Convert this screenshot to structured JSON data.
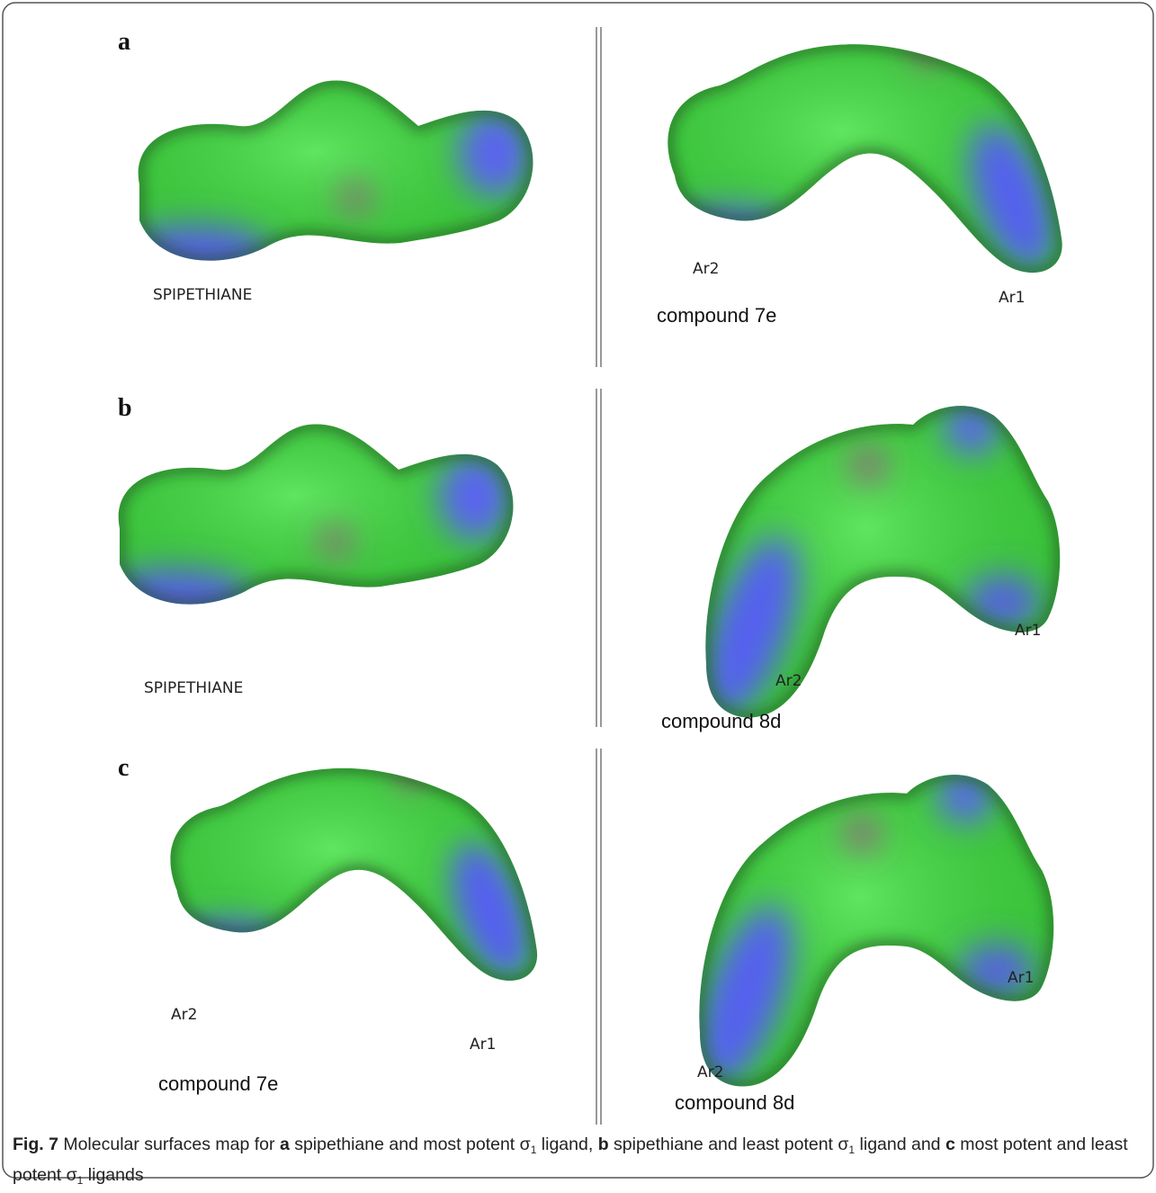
{
  "panels": [
    {
      "label": "a",
      "left": {
        "name": "SPIPETHIANE"
      },
      "right": {
        "ar2": "Ar2",
        "ar1": "Ar1",
        "name": "compound 7e"
      }
    },
    {
      "label": "b",
      "left": {
        "name": "SPIPETHIANE"
      },
      "right": {
        "ar1": "Ar1",
        "ar2": "Ar2",
        "name": "compound 8d"
      }
    },
    {
      "label": "c",
      "left": {
        "ar2": "Ar2",
        "ar1": "Ar1",
        "name": "compound 7e"
      },
      "right": {
        "ar1": "Ar1",
        "ar2": "Ar2",
        "name": "compound 8d"
      }
    }
  ],
  "caption": [
    "Fig. 7",
    " Molecular surfaces map for ",
    "a",
    " spipethiane and most potent σ",
    "1",
    " ligand, ",
    "b",
    " spipethiane and least potent σ",
    "1",
    " ligand and ",
    "c",
    " most potent and least potent σ",
    "1",
    " ligands"
  ]
}
